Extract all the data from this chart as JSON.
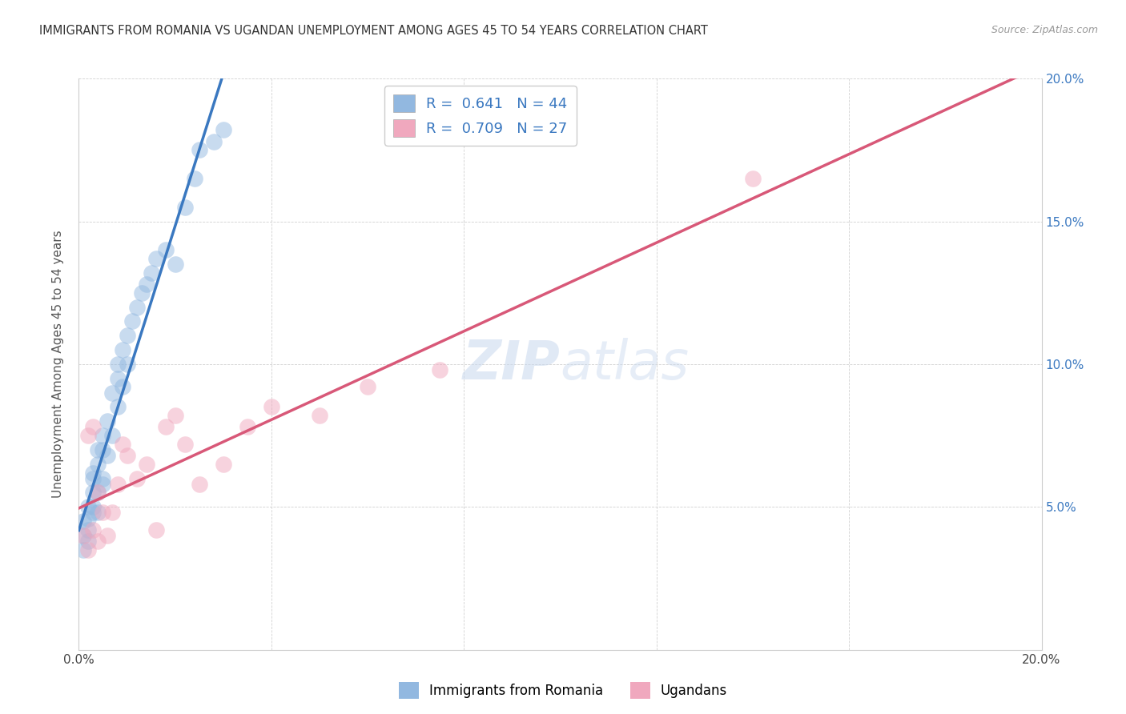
{
  "title": "IMMIGRANTS FROM ROMANIA VS UGANDAN UNEMPLOYMENT AMONG AGES 45 TO 54 YEARS CORRELATION CHART",
  "source": "Source: ZipAtlas.com",
  "ylabel": "Unemployment Among Ages 45 to 54 years",
  "xlim": [
    0.0,
    0.2
  ],
  "ylim": [
    0.0,
    0.2
  ],
  "romania_R": "0.641",
  "romania_N": "44",
  "uganda_R": "0.709",
  "uganda_N": "27",
  "blue_color": "#92b8e0",
  "pink_color": "#f0a8be",
  "blue_line_color": "#3a78c0",
  "pink_line_color": "#d85878",
  "legend_text_color": "#3a78c0",
  "watermark_zip": "ZIP",
  "watermark_atlas": "atlas",
  "romania_x": [
    0.001,
    0.001,
    0.001,
    0.002,
    0.002,
    0.002,
    0.002,
    0.003,
    0.003,
    0.003,
    0.003,
    0.003,
    0.004,
    0.004,
    0.004,
    0.004,
    0.005,
    0.005,
    0.005,
    0.005,
    0.006,
    0.006,
    0.007,
    0.007,
    0.008,
    0.008,
    0.008,
    0.009,
    0.009,
    0.01,
    0.01,
    0.011,
    0.012,
    0.013,
    0.014,
    0.015,
    0.016,
    0.018,
    0.02,
    0.022,
    0.024,
    0.025,
    0.028,
    0.03
  ],
  "romania_y": [
    0.035,
    0.04,
    0.045,
    0.038,
    0.042,
    0.046,
    0.05,
    0.05,
    0.055,
    0.06,
    0.062,
    0.048,
    0.055,
    0.065,
    0.07,
    0.048,
    0.06,
    0.07,
    0.075,
    0.058,
    0.068,
    0.08,
    0.075,
    0.09,
    0.085,
    0.095,
    0.1,
    0.092,
    0.105,
    0.1,
    0.11,
    0.115,
    0.12,
    0.125,
    0.128,
    0.132,
    0.137,
    0.14,
    0.135,
    0.155,
    0.165,
    0.175,
    0.178,
    0.182
  ],
  "uganda_x": [
    0.001,
    0.002,
    0.002,
    0.003,
    0.003,
    0.004,
    0.004,
    0.005,
    0.006,
    0.007,
    0.008,
    0.009,
    0.01,
    0.012,
    0.014,
    0.016,
    0.018,
    0.02,
    0.022,
    0.025,
    0.03,
    0.035,
    0.04,
    0.05,
    0.06,
    0.075,
    0.14
  ],
  "uganda_y": [
    0.04,
    0.035,
    0.075,
    0.042,
    0.078,
    0.038,
    0.055,
    0.048,
    0.04,
    0.048,
    0.058,
    0.072,
    0.068,
    0.06,
    0.065,
    0.042,
    0.078,
    0.082,
    0.072,
    0.058,
    0.065,
    0.078,
    0.085,
    0.082,
    0.092,
    0.098,
    0.165
  ]
}
